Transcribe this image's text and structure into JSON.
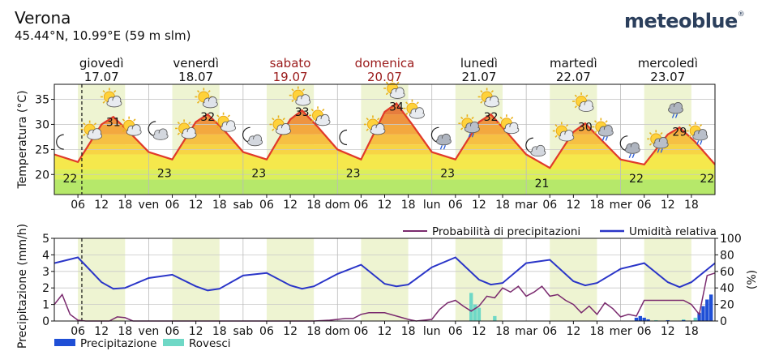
{
  "header": {
    "location": "Verona",
    "coords": "45.44°N, 10.99°E (59 m slm)",
    "brand": "meteoblue",
    "brand_mark": "®"
  },
  "colors": {
    "weekday": "#111111",
    "weekend": "#9a1a1a",
    "day_band": "#eef4d2",
    "temp_line": "#e03a2a",
    "humidity_line": "#2a35c8",
    "precip_prob_line": "#7a2a6e",
    "precip_bar": "#1f4fd6",
    "showers_bar": "#6fd8c6"
  },
  "days": [
    {
      "name": "giovedì",
      "date": "17.07",
      "weekend": false
    },
    {
      "name": "venerdì",
      "date": "18.07",
      "weekend": false
    },
    {
      "name": "sabato",
      "date": "19.07",
      "weekend": true
    },
    {
      "name": "domenica",
      "date": "20.07",
      "weekend": true
    },
    {
      "name": "lunedì",
      "date": "21.07",
      "weekend": false
    },
    {
      "name": "martedì",
      "date": "22.07",
      "weekend": false
    },
    {
      "name": "mercoledì",
      "date": "23.07",
      "weekend": false
    }
  ],
  "x_ticks": {
    "hour_labels": [
      "06",
      "12",
      "18"
    ],
    "day_abbr": [
      "ven",
      "sab",
      "dom",
      "lun",
      "mar",
      "mer"
    ]
  },
  "chart_data": [
    {
      "type": "area",
      "ylabel": "Temperatura (°C)",
      "yticks": [
        20,
        25,
        30,
        35
      ],
      "ylim": [
        16,
        38
      ],
      "x_unit": "hours from 17.07 00:00",
      "xlim": [
        0,
        168
      ],
      "now_marker_hour": 7,
      "temperature": {
        "x": [
          0,
          6,
          12,
          15,
          19,
          24,
          30,
          36,
          39,
          43,
          48,
          54,
          60,
          63,
          67,
          72,
          78,
          84,
          87,
          91,
          96,
          102,
          108,
          111,
          115,
          120,
          126,
          132,
          135,
          139,
          144,
          150,
          156,
          159,
          163,
          168
        ],
        "y": [
          24,
          22.5,
          30,
          31.5,
          28.5,
          24.5,
          23,
          30.5,
          32,
          29,
          24.5,
          23,
          31,
          32.8,
          29.5,
          25,
          23,
          32.5,
          34.2,
          30,
          24.5,
          23,
          30.5,
          32,
          28.5,
          24,
          21.3,
          28.5,
          30.2,
          27,
          23,
          22,
          28,
          29.4,
          26.5,
          22
        ]
      },
      "min_max_labels": [
        {
          "hour": 4,
          "value": "22"
        },
        {
          "hour": 15,
          "value": "31"
        },
        {
          "hour": 28,
          "value": "23"
        },
        {
          "hour": 39,
          "value": "32"
        },
        {
          "hour": 52,
          "value": "23"
        },
        {
          "hour": 63,
          "value": "33"
        },
        {
          "hour": 76,
          "value": "23"
        },
        {
          "hour": 87,
          "value": "34"
        },
        {
          "hour": 100,
          "value": "23"
        },
        {
          "hour": 111,
          "value": "32"
        },
        {
          "hour": 124,
          "value": "21"
        },
        {
          "hour": 135,
          "value": "30"
        },
        {
          "hour": 148,
          "value": "22"
        },
        {
          "hour": 159,
          "value": "29"
        },
        {
          "hour": 166,
          "value": "22"
        }
      ],
      "weather_icons": [
        {
          "hour": 2,
          "temp": 26.5,
          "icon": "moon-icon"
        },
        {
          "hour": 9,
          "temp": 29,
          "icon": "sun-cloud-icon"
        },
        {
          "hour": 14,
          "temp": 35.5,
          "icon": "sun-cloud-icon"
        },
        {
          "hour": 19,
          "temp": 29.8,
          "icon": "sun-cloud-icon"
        },
        {
          "hour": 26,
          "temp": 28.8,
          "icon": "moon-cloud-icon"
        },
        {
          "hour": 33,
          "temp": 29.2,
          "icon": "sun-cloud-icon"
        },
        {
          "hour": 38,
          "temp": 35.5,
          "icon": "sun-icon"
        },
        {
          "hour": 43,
          "temp": 30.6,
          "icon": "sun-cloud-icon"
        },
        {
          "hour": 50,
          "temp": 27.6,
          "icon": "moon-cloud-icon"
        },
        {
          "hour": 57,
          "temp": 30,
          "icon": "sun-cloud-icon"
        },
        {
          "hour": 62,
          "temp": 35.8,
          "icon": "sun-cloud-icon"
        },
        {
          "hour": 67,
          "temp": 31.8,
          "icon": "sun-cloud-icon"
        },
        {
          "hour": 74,
          "temp": 27.4,
          "icon": "moon-icon"
        },
        {
          "hour": 81,
          "temp": 30,
          "icon": "sun-cloud-icon"
        },
        {
          "hour": 86,
          "temp": 37.2,
          "icon": "sun-cloud-icon"
        },
        {
          "hour": 91,
          "temp": 33.2,
          "icon": "sun-cloud-icon"
        },
        {
          "hour": 98,
          "temp": 27.6,
          "icon": "moon-rain-icon"
        },
        {
          "hour": 105,
          "temp": 30.2,
          "icon": "sun-rain-icon"
        },
        {
          "hour": 110,
          "temp": 35.5,
          "icon": "sun-cloud-icon"
        },
        {
          "hour": 115,
          "temp": 30.2,
          "icon": "sun-cloud-icon"
        },
        {
          "hour": 122,
          "temp": 25.5,
          "icon": "moon-cloud-icon"
        },
        {
          "hour": 129,
          "temp": 28.7,
          "icon": "sun-cloud-icon"
        },
        {
          "hour": 134,
          "temp": 34.6,
          "icon": "sun-cloud-icon"
        },
        {
          "hour": 139,
          "temp": 29.5,
          "icon": "sun-rain-icon"
        },
        {
          "hour": 146,
          "temp": 25.9,
          "icon": "moon-rain-icon"
        },
        {
          "hour": 153,
          "temp": 27.1,
          "icon": "sun-rain-icon"
        },
        {
          "hour": 158,
          "temp": 33.4,
          "icon": "rain-cloud-icon"
        },
        {
          "hour": 163,
          "temp": 28.7,
          "icon": "sun-rain-icon"
        }
      ]
    },
    {
      "type": "line",
      "ylabel_left": "Precipitazione (mm/h)",
      "ylabel_right": "(%)",
      "yticks_left": [
        0,
        1,
        2,
        3,
        4,
        5
      ],
      "ylim_left": [
        0,
        5
      ],
      "yticks_right": [
        0,
        20,
        40,
        60,
        80,
        100
      ],
      "ylim_right": [
        0,
        100
      ],
      "xlim": [
        0,
        168
      ],
      "legend": {
        "precip_prob": "Probabilità di precipitazioni",
        "humidity": "Umidità relativa",
        "precipitation": "Precipitazione",
        "showers": "Rovesci"
      },
      "humidity": {
        "x": [
          0,
          6,
          12,
          15,
          18,
          24,
          30,
          36,
          39,
          42,
          48,
          54,
          60,
          63,
          66,
          72,
          78,
          84,
          87,
          90,
          96,
          102,
          108,
          111,
          114,
          120,
          126,
          132,
          135,
          138,
          144,
          150,
          156,
          159,
          162,
          168
        ],
        "y": [
          70,
          77,
          47,
          39,
          40,
          52,
          56,
          42,
          37,
          39,
          55,
          58,
          43,
          39,
          42,
          57,
          68,
          45,
          42,
          44,
          65,
          77,
          50,
          44,
          46,
          70,
          74,
          48,
          43,
          46,
          63,
          70,
          47,
          41,
          47,
          70
        ]
      },
      "precip_probability": {
        "x": [
          0,
          2,
          4,
          6,
          8,
          10,
          12,
          14,
          16,
          18,
          20,
          24,
          48,
          66,
          70,
          72,
          74,
          76,
          78,
          80,
          82,
          84,
          90,
          92,
          96,
          98,
          100,
          102,
          104,
          106,
          108,
          110,
          112,
          114,
          116,
          118,
          120,
          122,
          124,
          126,
          128,
          130,
          132,
          134,
          136,
          138,
          140,
          142,
          144,
          146,
          148,
          150,
          152,
          156,
          160,
          162,
          164,
          166,
          168
        ],
        "y": [
          20,
          32,
          8,
          1,
          0,
          0,
          0,
          0,
          5,
          4,
          0,
          0,
          0,
          0,
          1,
          2,
          3,
          3,
          8,
          10,
          10,
          10,
          2,
          0,
          2,
          14,
          22,
          25,
          18,
          12,
          18,
          30,
          28,
          40,
          35,
          42,
          30,
          35,
          42,
          30,
          32,
          25,
          20,
          10,
          18,
          8,
          22,
          15,
          5,
          8,
          6,
          25,
          25,
          25,
          25,
          20,
          8,
          55,
          58
        ]
      },
      "precipitation_bars": [
        {
          "hour": 148,
          "mm": 0.2
        },
        {
          "hour": 149,
          "mm": 0.3
        },
        {
          "hour": 150,
          "mm": 0.2
        },
        {
          "hour": 151,
          "mm": 0.1
        },
        {
          "hour": 156,
          "mm": 0.05
        },
        {
          "hour": 160,
          "mm": 0.05
        },
        {
          "hour": 164,
          "mm": 0.5
        },
        {
          "hour": 165,
          "mm": 0.9
        },
        {
          "hour": 166,
          "mm": 1.3
        },
        {
          "hour": 167,
          "mm": 1.6
        }
      ],
      "showers_bars": [
        {
          "hour": 106,
          "mm": 1.7
        },
        {
          "hour": 107,
          "mm": 1.0
        },
        {
          "hour": 108,
          "mm": 0.8
        },
        {
          "hour": 112,
          "mm": 0.3
        },
        {
          "hour": 153,
          "mm": 0.05
        },
        {
          "hour": 160,
          "mm": 0.1
        },
        {
          "hour": 163,
          "mm": 0.2
        }
      ]
    }
  ]
}
